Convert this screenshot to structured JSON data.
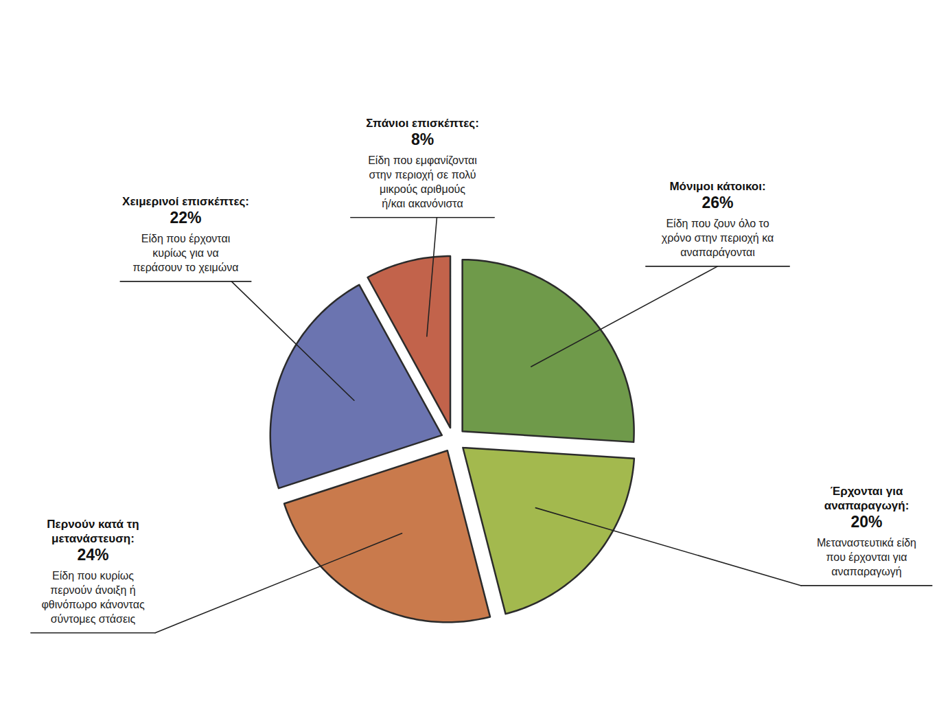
{
  "chart_data": {
    "type": "pie",
    "categories": [
      "Μόνιμοι κάτοικοι:",
      "Έρχονται για αναπαραγωγή:",
      "Περνούν κατά τη μετανάστευση:",
      "Χειμερινοί επισκέπτες:",
      "Σπάνιοι επισκέπτες:"
    ],
    "values": [
      26,
      20,
      24,
      22,
      8
    ],
    "value_labels": [
      "26%",
      "20%",
      "24%",
      "22%",
      "8%"
    ],
    "descriptions": [
      "Είδη που ζουν όλο το χρόνο στην περιοχή κα αναπαράγονται",
      "Μεταναστευτικά είδη που έρχονται για αναπαραγωγή",
      "Είδη που κυρίως περνούν άνοιξη ή φθινόπωρο κάνοντας σύντομες στάσεις",
      "Είδη που έρχονται κυρίως για να περάσουν το χειμώνα",
      "Είδη που εμφανίζονται στην περιοχή σε πολύ μικρούς αριθμούς ή/και ακανόνιστα"
    ],
    "colors": [
      "#6f9a4a",
      "#a3b94e",
      "#c97a4c",
      "#6b74b0",
      "#c2634b"
    ],
    "data_labels": true
  }
}
